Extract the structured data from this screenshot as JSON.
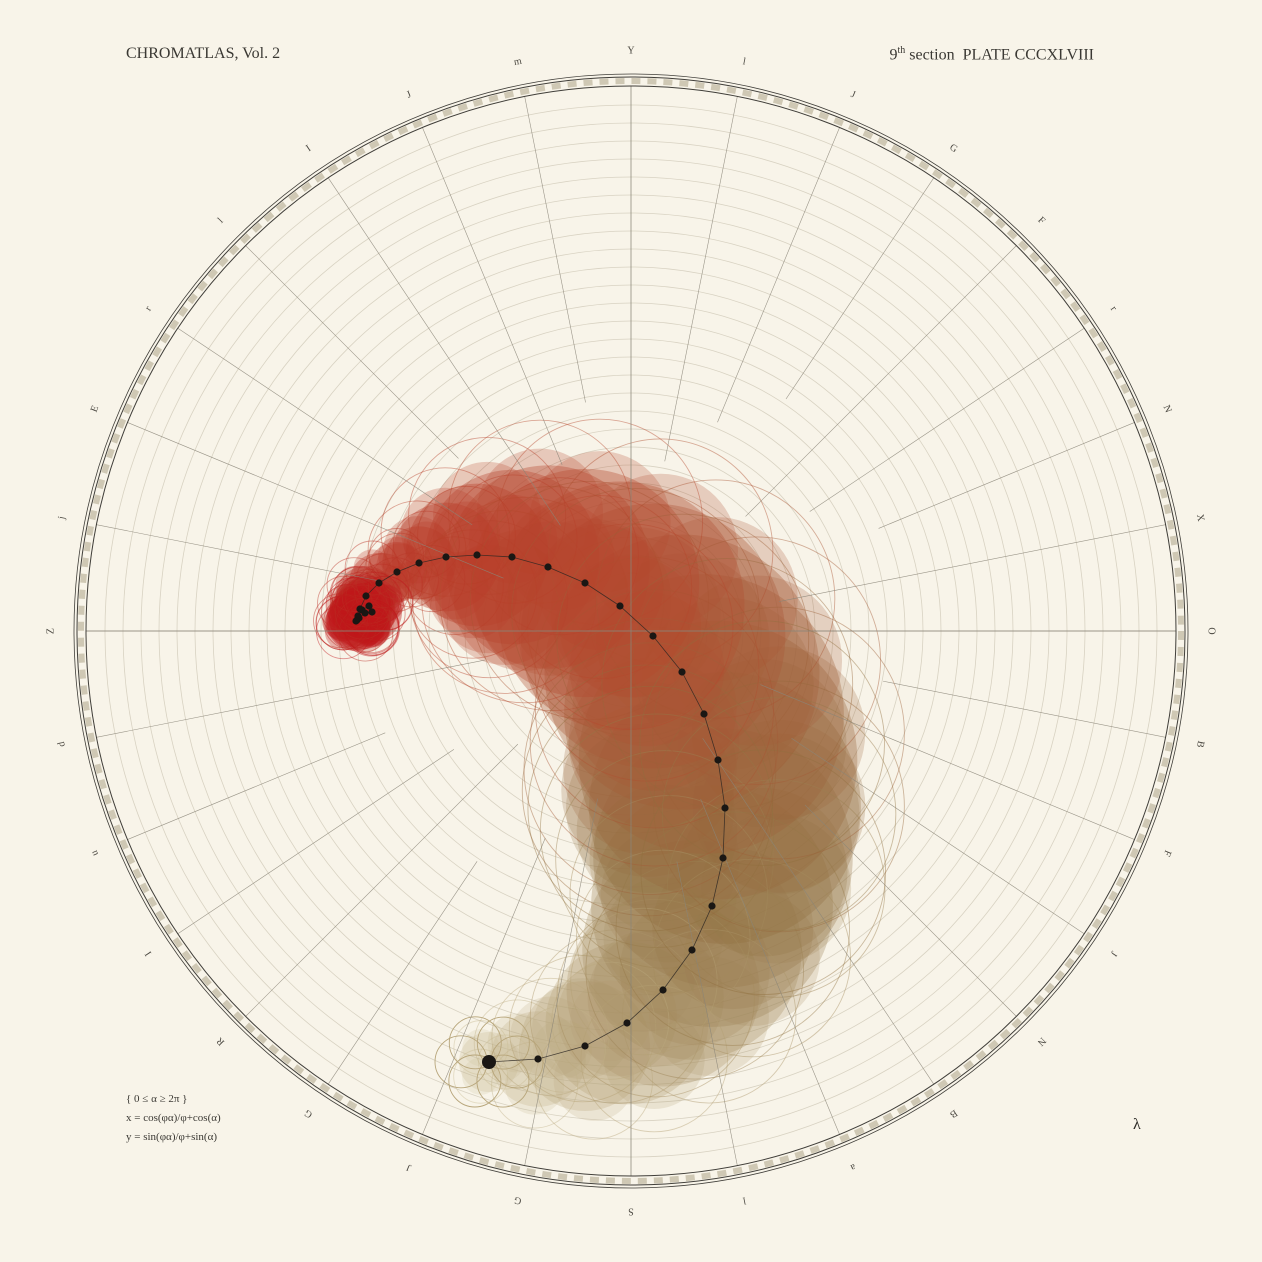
{
  "header": {
    "title": "CHROMATLAS, Vol. 2",
    "section_number": "9",
    "section_suffix": "th",
    "section_word": "section",
    "plate": "PLATE CCCXLVIII"
  },
  "formula": {
    "domain": "{ 0 ≤ α ≥ 2π }",
    "x_eq": "x = cos(φα)/φ+cos(α)",
    "y_eq": "y = sin(φα)/φ+sin(α)"
  },
  "corner_glyph": "λ",
  "ring_labels": [
    "Y",
    "l",
    "J",
    "G",
    "F",
    "r",
    "N",
    "X",
    "O",
    "B",
    "F",
    "J",
    "N",
    "B",
    "a",
    "l",
    "S",
    "G",
    "J",
    "G",
    "R",
    "I",
    "u",
    "d",
    "Z",
    "j",
    "E",
    "r",
    "l",
    "I",
    "J",
    "m"
  ],
  "colors": {
    "background": "#f8f4e9",
    "ring": "#3f3d38",
    "grid": "#8a8578",
    "red": "#c0392b",
    "brown": "#8f7a4a",
    "sand": "#c9bc95",
    "dot": "#1a1714"
  }
}
